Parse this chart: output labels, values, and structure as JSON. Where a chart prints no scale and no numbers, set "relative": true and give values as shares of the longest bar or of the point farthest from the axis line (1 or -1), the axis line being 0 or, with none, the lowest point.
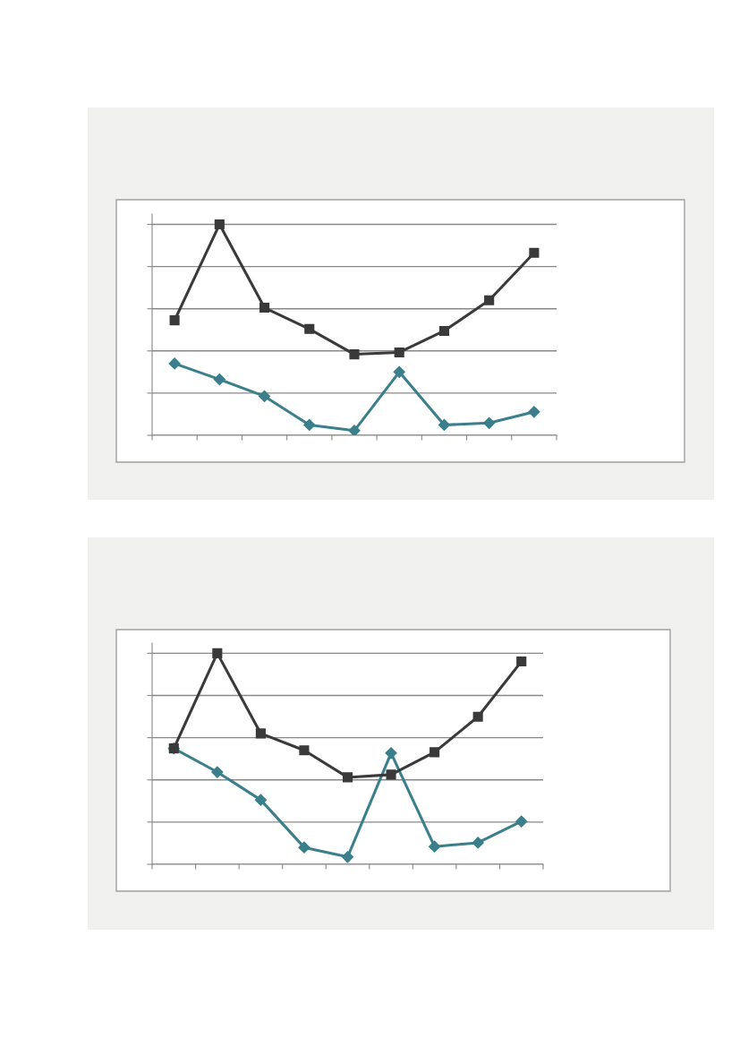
{
  "chart_data": [
    {
      "type": "line",
      "relative": true,
      "categories": [
        null,
        null,
        null,
        null,
        null,
        null,
        null,
        null,
        null
      ],
      "grid": "y",
      "line_style": "solid",
      "series": [
        {
          "color": "#3a7f8b",
          "marker": "diamond",
          "values": [
            0.34,
            0.265,
            0.185,
            0.049,
            0.022,
            0.3,
            0.049,
            0.058,
            0.111
          ]
        },
        {
          "color": "#3a3a3a",
          "marker": "square",
          "values": [
            0.545,
            1,
            0.605,
            0.504,
            0.384,
            0.393,
            0.495,
            0.64,
            0.865
          ]
        }
      ]
    },
    {
      "type": "line",
      "relative": true,
      "categories": [
        null,
        null,
        null,
        null,
        null,
        null,
        null,
        null,
        null
      ],
      "grid": "y",
      "line_style": "solid",
      "series": [
        {
          "color": "#3a7f8b",
          "marker": "diamond",
          "values": [
            0.549,
            0.437,
            0.305,
            0.08,
            0.035,
            0.527,
            0.084,
            0.102,
            0.203
          ]
        },
        {
          "color": "#3a3a3a",
          "marker": "square",
          "values": [
            0.549,
            1,
            0.62,
            0.54,
            0.412,
            0.425,
            0.531,
            0.699,
            0.961
          ]
        }
      ]
    }
  ]
}
